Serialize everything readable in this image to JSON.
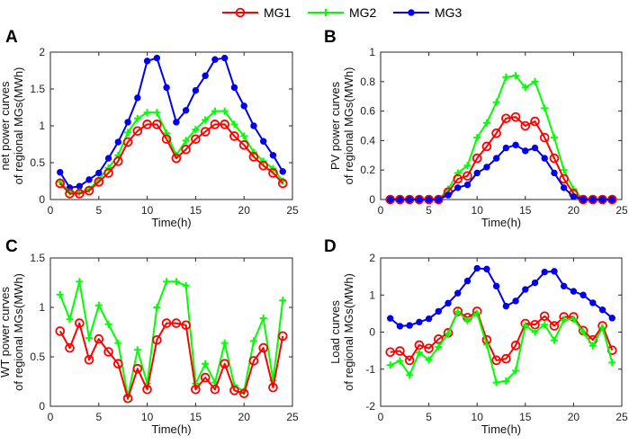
{
  "colors": {
    "MG1": "#ff0000",
    "MG2": "#00ff00",
    "MG3": "#0000ee"
  },
  "chart_data": {
    "type": "line",
    "legend": {
      "position": "top",
      "entries": [
        "MG1",
        "MG2",
        "MG3"
      ]
    },
    "panels": [
      {
        "id": "A",
        "letter": "A",
        "xlabel": "Time(h)",
        "ylabel_line1": "net power curves",
        "ylabel_line2": "of regional MGs(MWh)",
        "xlim": [
          0,
          25
        ],
        "ylim": [
          0,
          2
        ],
        "xticks": [
          0,
          5,
          10,
          15,
          20,
          25
        ],
        "yticks": [
          0,
          0.5,
          1,
          1.5,
          2
        ],
        "ytick_labels": [
          "0",
          "0.5",
          "1",
          "1.5",
          "2"
        ],
        "x": [
          1,
          2,
          3,
          4,
          5,
          6,
          7,
          8,
          9,
          10,
          11,
          12,
          13,
          14,
          15,
          16,
          17,
          18,
          19,
          20,
          21,
          22,
          23,
          24
        ],
        "series": [
          {
            "name": "MG3",
            "marker": "dot",
            "values": [
              0.37,
              0.16,
              0.18,
              0.27,
              0.36,
              0.56,
              0.78,
              1.05,
              1.38,
              1.88,
              1.92,
              1.52,
              1.05,
              1.21,
              1.48,
              1.68,
              1.9,
              1.92,
              1.52,
              1.27,
              1.0,
              0.79,
              0.6,
              0.38
            ]
          },
          {
            "name": "MG2",
            "marker": "plus",
            "values": [
              0.24,
              0.1,
              0.1,
              0.14,
              0.27,
              0.43,
              0.6,
              0.91,
              1.1,
              1.18,
              1.18,
              0.9,
              0.6,
              0.8,
              0.95,
              1.08,
              1.2,
              1.2,
              1.02,
              0.86,
              0.64,
              0.52,
              0.42,
              0.25
            ]
          },
          {
            "name": "MG1",
            "marker": "circle",
            "values": [
              0.22,
              0.08,
              0.08,
              0.12,
              0.24,
              0.36,
              0.52,
              0.78,
              0.93,
              1.02,
              1.02,
              0.82,
              0.56,
              0.68,
              0.82,
              0.92,
              1.02,
              1.02,
              0.86,
              0.74,
              0.58,
              0.46,
              0.36,
              0.22
            ]
          }
        ]
      },
      {
        "id": "B",
        "letter": "B",
        "xlabel": "Time(h)",
        "ylabel_line1": "PV power curves",
        "ylabel_line2": "of regional MGs(MWh)",
        "xlim": [
          0,
          25
        ],
        "ylim": [
          0,
          1
        ],
        "xticks": [
          0,
          5,
          10,
          15,
          20,
          25
        ],
        "yticks": [
          0,
          0.2,
          0.4,
          0.6,
          0.8,
          1
        ],
        "ytick_labels": [
          "0",
          "0.2",
          "0.4",
          "0.6",
          "0.8",
          "1"
        ],
        "x": [
          1,
          2,
          3,
          4,
          5,
          6,
          7,
          8,
          9,
          10,
          11,
          12,
          13,
          14,
          15,
          16,
          17,
          18,
          19,
          20,
          21,
          22,
          23,
          24
        ],
        "series": [
          {
            "name": "MG2",
            "marker": "plus",
            "values": [
              0,
              0,
              0,
              0,
              0,
              0,
              0.07,
              0.18,
              0.23,
              0.42,
              0.52,
              0.66,
              0.83,
              0.84,
              0.76,
              0.8,
              0.62,
              0.42,
              0.2,
              0.07,
              0,
              0,
              0,
              0
            ]
          },
          {
            "name": "MG1",
            "marker": "circle",
            "values": [
              0,
              0,
              0,
              0,
              0,
              0,
              0.05,
              0.14,
              0.16,
              0.28,
              0.36,
              0.45,
              0.55,
              0.56,
              0.5,
              0.53,
              0.42,
              0.28,
              0.14,
              0.04,
              0,
              0,
              0,
              0
            ]
          },
          {
            "name": "MG3",
            "marker": "dot",
            "values": [
              0,
              0,
              0,
              0,
              0,
              0,
              0.03,
              0.08,
              0.1,
              0.18,
              0.22,
              0.28,
              0.35,
              0.37,
              0.33,
              0.35,
              0.28,
              0.18,
              0.08,
              0.02,
              0,
              0,
              0,
              0
            ]
          }
        ]
      },
      {
        "id": "C",
        "letter": "C",
        "xlabel": "Time(h)",
        "ylabel_line1": "WT power curves",
        "ylabel_line2": "of regional MGs(MWh)",
        "xlim": [
          0,
          25
        ],
        "ylim": [
          0,
          1.5
        ],
        "xticks": [
          0,
          5,
          10,
          15,
          20,
          25
        ],
        "yticks": [
          0,
          0.5,
          1,
          1.5
        ],
        "ytick_labels": [
          "0",
          "0.5",
          "1",
          "1.5"
        ],
        "x": [
          1,
          2,
          3,
          4,
          5,
          6,
          7,
          8,
          9,
          10,
          11,
          12,
          13,
          14,
          15,
          16,
          17,
          18,
          19,
          20,
          21,
          22,
          23,
          24
        ],
        "series": [
          {
            "name": "MG2",
            "marker": "plus",
            "values": [
              1.13,
              0.88,
              1.26,
              0.69,
              1.02,
              0.83,
              0.64,
              0.1,
              0.57,
              0.23,
              1.0,
              1.26,
              1.26,
              1.22,
              0.23,
              0.43,
              0.24,
              0.64,
              0.21,
              0.15,
              0.66,
              0.89,
              0.26,
              1.07
            ]
          },
          {
            "name": "MG1",
            "marker": "circle",
            "values": [
              0.76,
              0.59,
              0.84,
              0.47,
              0.68,
              0.55,
              0.43,
              0.08,
              0.38,
              0.17,
              0.67,
              0.84,
              0.84,
              0.82,
              0.17,
              0.29,
              0.17,
              0.43,
              0.16,
              0.13,
              0.46,
              0.59,
              0.19,
              0.71
            ]
          }
        ]
      },
      {
        "id": "D",
        "letter": "D",
        "xlabel": "Time(h)",
        "ylabel_line1": "Load curves",
        "ylabel_line2": "of regional MGs(MWh)",
        "xlim": [
          0,
          25
        ],
        "ylim": [
          -2,
          2
        ],
        "xticks": [
          0,
          5,
          10,
          15,
          20,
          25
        ],
        "yticks": [
          -2,
          -1,
          0,
          1,
          2
        ],
        "ytick_labels": [
          "-2",
          "-1",
          "0",
          "1",
          "2"
        ],
        "x": [
          1,
          2,
          3,
          4,
          5,
          6,
          7,
          8,
          9,
          10,
          11,
          12,
          13,
          14,
          15,
          16,
          17,
          18,
          19,
          20,
          21,
          22,
          23,
          24
        ],
        "series": [
          {
            "name": "MG3",
            "marker": "dot",
            "values": [
              0.37,
              0.16,
              0.18,
              0.27,
              0.36,
              0.56,
              0.78,
              1.05,
              1.38,
              1.72,
              1.7,
              1.24,
              0.7,
              0.84,
              1.15,
              1.33,
              1.62,
              1.64,
              1.24,
              1.1,
              1.0,
              0.79,
              0.6,
              0.38
            ]
          },
          {
            "name": "MG1",
            "marker": "circle",
            "values": [
              -0.54,
              -0.51,
              -0.76,
              -0.35,
              -0.44,
              -0.19,
              -0.02,
              0.56,
              0.39,
              0.56,
              -0.21,
              -0.76,
              -0.72,
              -0.36,
              0.23,
              0.2,
              0.43,
              0.17,
              0.41,
              0.41,
              0.04,
              -0.21,
              0.17,
              -0.49
            ]
          },
          {
            "name": "MG2",
            "marker": "plus",
            "values": [
              -0.89,
              -0.78,
              -1.16,
              -0.55,
              -0.75,
              -0.4,
              -0.04,
              0.55,
              0.31,
              0.5,
              -0.34,
              -1.36,
              -1.32,
              -1.04,
              0.17,
              0.0,
              0.2,
              -0.22,
              0.33,
              0.35,
              0.0,
              -0.37,
              0.12,
              -0.82
            ]
          }
        ]
      }
    ]
  }
}
